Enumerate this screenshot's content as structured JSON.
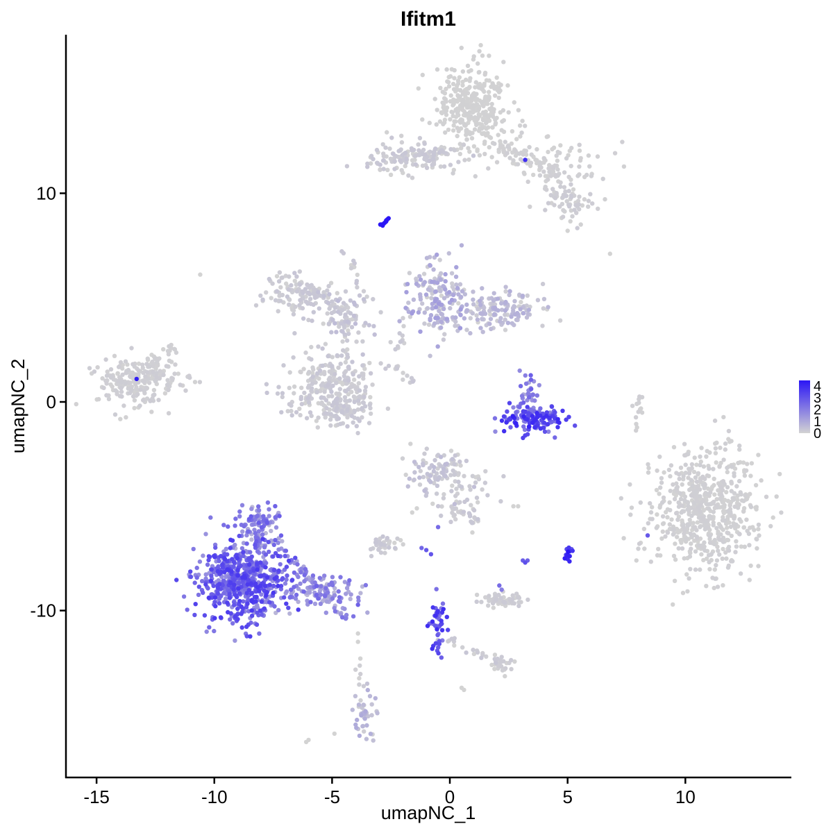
{
  "chart_data": {
    "type": "scatter",
    "title": "Ifitm1",
    "xlabel": "umapNC_1",
    "ylabel": "umapNC_2",
    "xlim": [
      -16.3,
      14.5
    ],
    "ylim": [
      -18.0,
      17.6
    ],
    "xticks": [
      -15,
      -10,
      -5,
      0,
      5,
      10
    ],
    "xtick_labels": [
      "-15",
      "-10",
      "-5",
      "0",
      "5",
      "10"
    ],
    "yticks": [
      -10,
      0,
      10
    ],
    "ytick_labels": [
      "-10",
      "0",
      "10"
    ],
    "grid": false,
    "legend": {
      "position": "right",
      "type": "colorbar",
      "labels": [
        "4",
        "3",
        "2",
        "1",
        "0"
      ],
      "low_color": "#d3d3d3",
      "high_color": "#2b16f5"
    },
    "color_scale": {
      "min": 0,
      "max": 4,
      "low": "#d3d3d3",
      "high": "#2b16f5"
    },
    "clusters": [
      {
        "cx": 1.0,
        "cy": 14.2,
        "sx": 0.75,
        "sy": 1.0,
        "n": 330,
        "expr": [
          0,
          0.05
        ]
      },
      {
        "cx": -1.6,
        "cy": 11.7,
        "sx": 1.1,
        "sy": 0.35,
        "n": 120,
        "expr": [
          0,
          0.3
        ]
      },
      {
        "cx": 3.9,
        "cy": 11.5,
        "sx": 1.1,
        "sy": 0.6,
        "n": 90,
        "expr": [
          0,
          0.1
        ]
      },
      {
        "cx": 5.0,
        "cy": 9.7,
        "sx": 0.6,
        "sy": 0.5,
        "n": 70,
        "expr": [
          0,
          0.2
        ]
      },
      {
        "cx": -6.5,
        "cy": 5.2,
        "sx": 0.7,
        "sy": 0.5,
        "n": 110,
        "expr": [
          0,
          0.3
        ]
      },
      {
        "cx": -4.6,
        "cy": 4.3,
        "sx": 0.9,
        "sy": 0.8,
        "n": 60,
        "expr": [
          0,
          0.5
        ]
      },
      {
        "cx": -5.0,
        "cy": 0.7,
        "sx": 1.0,
        "sy": 0.9,
        "n": 260,
        "expr": [
          0,
          0.3
        ]
      },
      {
        "cx": -4.5,
        "cy": -0.3,
        "sx": 0.5,
        "sy": 0.35,
        "n": 60,
        "expr": [
          0,
          0.3
        ]
      },
      {
        "cx": -13.2,
        "cy": 1.0,
        "sx": 0.9,
        "sy": 0.6,
        "n": 240,
        "expr": [
          0,
          0.15
        ]
      },
      {
        "cx": -0.6,
        "cy": 5.0,
        "sx": 0.6,
        "sy": 1.0,
        "n": 150,
        "expr": [
          0,
          1.2
        ]
      },
      {
        "cx": 1.8,
        "cy": 4.4,
        "sx": 1.2,
        "sy": 0.45,
        "n": 160,
        "expr": [
          0,
          0.8
        ]
      },
      {
        "cx": 3.6,
        "cy": -0.8,
        "sx": 0.75,
        "sy": 0.35,
        "n": 150,
        "expr": [
          1.5,
          3.8
        ]
      },
      {
        "cx": 3.4,
        "cy": 0.6,
        "sx": 0.25,
        "sy": 0.45,
        "n": 30,
        "expr": [
          0.8,
          2.5
        ]
      },
      {
        "cx": 10.8,
        "cy": -5.3,
        "sx": 1.1,
        "sy": 1.45,
        "n": 620,
        "expr": [
          0,
          0.1
        ]
      },
      {
        "cx": -0.5,
        "cy": -3.4,
        "sx": 0.6,
        "sy": 0.6,
        "n": 90,
        "expr": [
          0,
          0.5
        ]
      },
      {
        "cx": 0.6,
        "cy": -4.4,
        "sx": 0.6,
        "sy": 0.7,
        "n": 50,
        "expr": [
          0,
          0.3
        ]
      },
      {
        "cx": -8.8,
        "cy": -8.6,
        "sx": 0.9,
        "sy": 0.9,
        "n": 620,
        "expr": [
          1.2,
          3.3
        ]
      },
      {
        "cx": -8.1,
        "cy": -6.0,
        "sx": 0.45,
        "sy": 0.6,
        "n": 110,
        "expr": [
          0.5,
          2.6
        ]
      },
      {
        "cx": -5.6,
        "cy": -9.1,
        "sx": 0.9,
        "sy": 0.4,
        "n": 110,
        "expr": [
          0.5,
          2.4
        ]
      },
      {
        "cx": -0.5,
        "cy": -10.6,
        "sx": 0.15,
        "sy": 0.7,
        "n": 45,
        "expr": [
          1.5,
          3.6
        ]
      },
      {
        "cx": 2.4,
        "cy": -9.5,
        "sx": 0.45,
        "sy": 0.2,
        "n": 60,
        "expr": [
          0,
          0.2
        ]
      },
      {
        "cx": -2.8,
        "cy": -6.8,
        "sx": 0.3,
        "sy": 0.2,
        "n": 40,
        "expr": [
          0,
          0.3
        ]
      },
      {
        "cx": 2.3,
        "cy": -12.6,
        "sx": 0.25,
        "sy": 0.2,
        "n": 25,
        "expr": [
          0,
          0.2
        ]
      },
      {
        "cx": -3.6,
        "cy": -15.0,
        "sx": 0.2,
        "sy": 0.7,
        "n": 45,
        "expr": [
          0,
          0.9
        ]
      },
      {
        "cx": 5.0,
        "cy": -7.3,
        "sx": 0.12,
        "sy": 0.3,
        "n": 15,
        "expr": [
          2.5,
          4.0
        ]
      },
      {
        "cx": 8.0,
        "cy": -0.3,
        "sx": 0.12,
        "sy": 0.6,
        "n": 14,
        "expr": [
          0,
          0.1
        ]
      }
    ],
    "bridges": [
      {
        "from": [
          -3.3,
          11.4
        ],
        "to": [
          0.3,
          12.2
        ],
        "n": 30,
        "expr": [
          0,
          0.3
        ]
      },
      {
        "from": [
          1.8,
          12.3
        ],
        "to": [
          3.6,
          11.8
        ],
        "n": 25,
        "expr": [
          0,
          0.1
        ]
      },
      {
        "from": [
          -6.0,
          5.7
        ],
        "to": [
          -4.0,
          3.8
        ],
        "n": 30,
        "expr": [
          0,
          0.4
        ]
      },
      {
        "from": [
          -4.5,
          7.4
        ],
        "to": [
          -3.8,
          5.3
        ],
        "n": 12,
        "expr": [
          0,
          0.3
        ]
      },
      {
        "from": [
          -4.5,
          3.6
        ],
        "to": [
          -4.3,
          1.8
        ],
        "n": 15,
        "expr": [
          0,
          0.3
        ]
      },
      {
        "from": [
          -5.4,
          3.8
        ],
        "to": [
          -4.2,
          3.9
        ],
        "n": 15,
        "expr": [
          0,
          0.3
        ]
      },
      {
        "from": [
          -2.4,
          1.9
        ],
        "to": [
          -1.5,
          0.8
        ],
        "n": 12,
        "expr": [
          0,
          0.3
        ]
      },
      {
        "from": [
          -2.2,
          2.5
        ],
        "to": [
          -1.8,
          4.3
        ],
        "n": 12,
        "expr": [
          0,
          0.3
        ]
      },
      {
        "from": [
          -12.7,
          1.8
        ],
        "to": [
          -11.7,
          2.7
        ],
        "n": 15,
        "expr": [
          0,
          0.1
        ]
      },
      {
        "from": [
          -7.5,
          -6.5
        ],
        "to": [
          -4.2,
          -10.5
        ],
        "n": 45,
        "expr": [
          0.4,
          2.2
        ]
      },
      {
        "from": [
          -0.4,
          -11.3
        ],
        "to": [
          2.1,
          -12.5
        ],
        "n": 20,
        "expr": [
          0,
          0.3
        ]
      },
      {
        "from": [
          -3.9,
          -12.5
        ],
        "to": [
          -3.7,
          -13.7
        ],
        "n": 6,
        "expr": [
          0,
          0.2
        ]
      },
      {
        "from": [
          0.1,
          -5.0
        ],
        "to": [
          1.3,
          -5.8
        ],
        "n": 20,
        "expr": [
          0,
          0.3
        ]
      },
      {
        "from": [
          3.1,
          11.6
        ],
        "to": [
          4.8,
          10.8
        ],
        "n": 20,
        "expr": [
          0,
          0.1
        ]
      }
    ],
    "points": [
      {
        "x": -2.9,
        "y": 8.5,
        "e": 4.0
      },
      {
        "x": -2.8,
        "y": 8.55,
        "e": 4.0
      },
      {
        "x": -2.75,
        "y": 8.6,
        "e": 3.9
      },
      {
        "x": -2.7,
        "y": 8.7,
        "e": 4.0
      },
      {
        "x": -2.65,
        "y": 8.75,
        "e": 3.8
      },
      {
        "x": -2.6,
        "y": 8.8,
        "e": 4.0
      },
      {
        "x": -2.85,
        "y": 8.45,
        "e": 3.9
      },
      {
        "x": -2.95,
        "y": 8.5,
        "e": 4.0
      },
      {
        "x": -2.7,
        "y": 8.65,
        "e": 3.9
      },
      {
        "x": -13.3,
        "y": 1.1,
        "e": 3.8
      },
      {
        "x": 3.2,
        "y": 11.6,
        "e": 3.5
      },
      {
        "x": -10.6,
        "y": 6.1,
        "e": 0
      },
      {
        "x": 6.8,
        "y": 7.1,
        "e": 0
      },
      {
        "x": 5.0,
        "y": 8.2,
        "e": 0
      },
      {
        "x": -1.0,
        "y": -7.1,
        "e": 2.6
      },
      {
        "x": -1.2,
        "y": -7.0,
        "e": 2.3
      },
      {
        "x": -0.8,
        "y": -7.3,
        "e": 2.7
      },
      {
        "x": -0.5,
        "y": -6.0,
        "e": 2.2
      },
      {
        "x": 3.1,
        "y": -7.6,
        "e": 2.5
      },
      {
        "x": 3.2,
        "y": -7.7,
        "e": 2.8
      },
      {
        "x": 3.3,
        "y": -7.6,
        "e": 2.4
      },
      {
        "x": 2.1,
        "y": -8.8,
        "e": 2.2
      },
      {
        "x": 2.2,
        "y": -9.0,
        "e": 1.8
      },
      {
        "x": -1.4,
        "y": -5.1,
        "e": 0
      },
      {
        "x": -1.6,
        "y": -5.3,
        "e": 0
      },
      {
        "x": 2.7,
        "y": -5.0,
        "e": 0
      },
      {
        "x": 2.9,
        "y": -5.0,
        "e": 0
      },
      {
        "x": 0.5,
        "y": -13.7,
        "e": 0
      },
      {
        "x": 0.6,
        "y": -13.8,
        "e": 0
      },
      {
        "x": -6.1,
        "y": -16.3,
        "e": 0
      },
      {
        "x": -6.0,
        "y": -16.2,
        "e": 0
      },
      {
        "x": -4.9,
        "y": -15.9,
        "e": 0
      },
      {
        "x": -3.9,
        "y": -11.1,
        "e": 0
      },
      {
        "x": -3.9,
        "y": -11.5,
        "e": 0
      },
      {
        "x": -3.8,
        "y": -12.3,
        "e": 0
      },
      {
        "x": 8.4,
        "y": -6.4,
        "e": 2.6
      },
      {
        "x": 1.0,
        "y": 11.8,
        "e": 0.3
      }
    ]
  }
}
